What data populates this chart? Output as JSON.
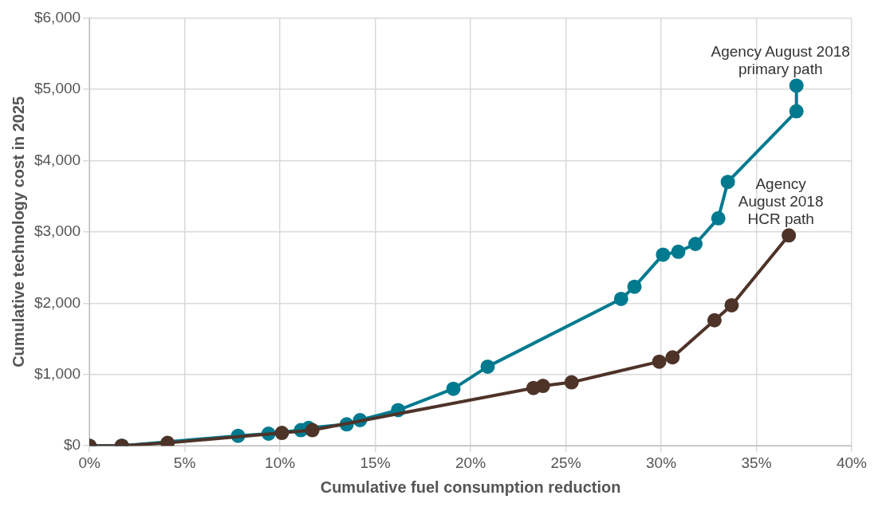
{
  "chart_data": {
    "type": "line",
    "xlabel": "Cumulative fuel consumption reduction",
    "ylabel": "Cumulative technology cost in 2025",
    "xlim": [
      0,
      40
    ],
    "xticks": [
      {
        "value": 0,
        "label": "0%"
      },
      {
        "value": 5,
        "label": "5%"
      },
      {
        "value": 10,
        "label": "10%"
      },
      {
        "value": 15,
        "label": "15%"
      },
      {
        "value": 20,
        "label": "20%"
      },
      {
        "value": 25,
        "label": "25%"
      },
      {
        "value": 30,
        "label": "30%"
      },
      {
        "value": 35,
        "label": "35%"
      },
      {
        "value": 40,
        "label": "40%"
      }
    ],
    "ylim": [
      0,
      6000
    ],
    "yticks": [
      {
        "value": 0,
        "label": "$0"
      },
      {
        "value": 1000,
        "label": "$1,000"
      },
      {
        "value": 2000,
        "label": "$2,000"
      },
      {
        "value": 3000,
        "label": "$3,000"
      },
      {
        "value": 4000,
        "label": "$4,000"
      },
      {
        "value": 5000,
        "label": "$5,000"
      },
      {
        "value": 6000,
        "label": "$6,000"
      }
    ],
    "grid": true,
    "marker": "circle",
    "line_style": "solid",
    "series": [
      {
        "name": "Agency August 2018 HCR path",
        "color": "#4e3328",
        "x": [
          0,
          1.7,
          4.1,
          10.1,
          11.7,
          23.3,
          23.8,
          25.3,
          29.9,
          30.6,
          32.8,
          33.7,
          36.7
        ],
        "values": [
          0,
          0,
          40,
          180,
          220,
          810,
          840,
          890,
          1180,
          1240,
          1760,
          1970,
          2950
        ]
      },
      {
        "name": "Agency August 2018 primary path",
        "color": "#007a8f",
        "x": [
          0,
          1.7,
          7.8,
          9.4,
          11.1,
          11.5,
          13.5,
          14.2,
          16.2,
          19.1,
          20.9,
          27.9,
          28.6,
          30.1,
          30.9,
          31.8,
          33,
          33.5,
          37.1,
          37.1
        ],
        "values": [
          0,
          0,
          140,
          170,
          220,
          250,
          300,
          360,
          500,
          800,
          1110,
          2060,
          2230,
          2680,
          2720,
          2830,
          3190,
          3700,
          4690,
          5050
        ]
      }
    ]
  }
}
